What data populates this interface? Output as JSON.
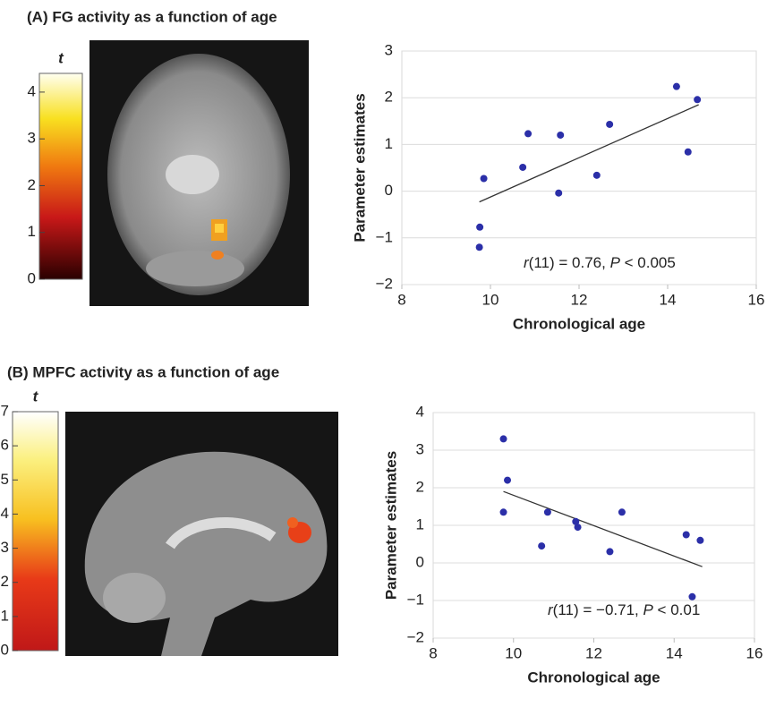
{
  "chart_data": [
    {
      "type": "colorbar",
      "label": "t",
      "ylim": [
        0,
        4.4
      ],
      "yticks": [
        0,
        1,
        2,
        3,
        4
      ]
    },
    {
      "type": "scatter",
      "title": "(A) FG activity as a function of age",
      "x_label": "Chronological age",
      "y_label": "Parameter estimates",
      "annotation": [
        "r",
        "(11) = 0.76, ",
        "P",
        " < 0.005"
      ],
      "x": [
        9.75,
        9.76,
        9.85,
        10.73,
        10.85,
        11.58,
        11.54,
        12.4,
        12.69,
        14.2,
        14.46,
        14.67
      ],
      "values": [
        -1.2,
        -0.77,
        0.27,
        0.51,
        1.23,
        1.2,
        -0.04,
        0.34,
        1.43,
        2.24,
        0.84,
        1.96
      ],
      "color": "#2b2fa8",
      "fit_line": {
        "x": [
          9.75,
          14.7
        ],
        "y": [
          -0.23,
          1.85
        ]
      },
      "xlim": [
        8,
        16
      ],
      "xticks": [
        8,
        10,
        12,
        14,
        16
      ],
      "ylim": [
        -2,
        3
      ],
      "yticks": [
        {
          "value": -2,
          "label": "−2"
        },
        {
          "value": -1,
          "label": "−1"
        },
        0,
        1,
        2,
        3
      ],
      "grid": true
    },
    {
      "type": "colorbar",
      "label": "t",
      "ylim": [
        0,
        7
      ],
      "yticks": [
        0,
        1,
        2,
        3,
        4,
        5,
        6,
        7
      ]
    },
    {
      "type": "scatter",
      "title": "(B) MPFC activity as a function of age",
      "x_label": "Chronological age",
      "y_label": "Parameter estimates",
      "annotation": [
        "r",
        "(11) = −0.71, ",
        "P",
        " < 0.01"
      ],
      "x": [
        9.75,
        9.85,
        9.75,
        10.85,
        10.7,
        11.55,
        11.6,
        12.4,
        12.7,
        14.3,
        14.45,
        14.65
      ],
      "values": [
        3.3,
        2.2,
        1.35,
        1.35,
        0.45,
        1.1,
        0.95,
        0.3,
        1.35,
        0.75,
        -0.9,
        0.6
      ],
      "color": "#2b2fa8",
      "fit_line": {
        "x": [
          9.75,
          14.7
        ],
        "y": [
          1.9,
          -0.1
        ]
      },
      "xlim": [
        8,
        16
      ],
      "xticks": [
        8,
        10,
        12,
        14,
        16
      ],
      "ylim": [
        -2,
        4
      ],
      "yticks": [
        {
          "value": -2,
          "label": "−2"
        },
        {
          "value": -1,
          "label": "−1"
        },
        0,
        1,
        2,
        3,
        4
      ],
      "grid": true
    }
  ]
}
